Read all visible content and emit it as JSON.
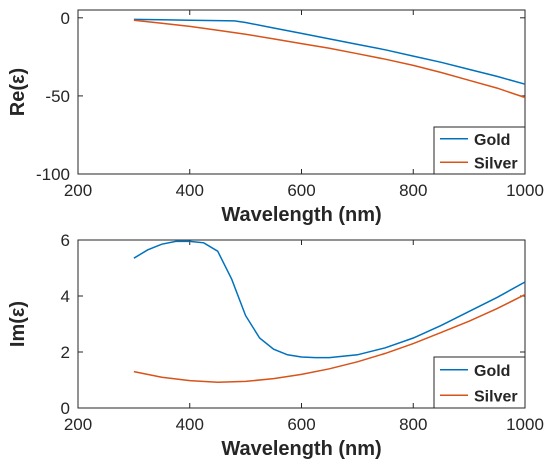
{
  "chart_data": [
    {
      "type": "line",
      "xlabel": "Wavelength (nm)",
      "ylabel": "Re(ε)",
      "xlim": [
        200,
        1000
      ],
      "ylim": [
        -100,
        5
      ],
      "xticks": [
        200,
        400,
        600,
        800,
        1000
      ],
      "yticks": [
        -100,
        -50,
        0
      ],
      "grid": false,
      "legend": "bottom-right",
      "series": [
        {
          "name": "Gold",
          "color": "#0072BD",
          "x": [
            300,
            350,
            400,
            450,
            480,
            500,
            550,
            600,
            650,
            700,
            750,
            800,
            850,
            900,
            950,
            1000
          ],
          "y": [
            -1.0,
            -1.2,
            -1.5,
            -1.8,
            -2.0,
            -3.0,
            -6.5,
            -10.0,
            -13.5,
            -17.0,
            -20.5,
            -24.5,
            -28.5,
            -33.0,
            -37.5,
            -42.5
          ]
        },
        {
          "name": "Silver",
          "color": "#D95319",
          "x": [
            300,
            350,
            400,
            450,
            500,
            550,
            600,
            650,
            700,
            750,
            800,
            850,
            900,
            950,
            1000
          ],
          "y": [
            -1.5,
            -3.5,
            -5.5,
            -8.0,
            -10.5,
            -13.5,
            -16.5,
            -19.5,
            -23.0,
            -26.5,
            -30.5,
            -35.0,
            -40.0,
            -45.0,
            -51.0
          ]
        }
      ]
    },
    {
      "type": "line",
      "xlabel": "Wavelength (nm)",
      "ylabel": "Im(ε)",
      "xlim": [
        200,
        1000
      ],
      "ylim": [
        0,
        6
      ],
      "xticks": [
        200,
        400,
        600,
        800,
        1000
      ],
      "yticks": [
        0,
        2,
        4,
        6
      ],
      "grid": false,
      "legend": "bottom-right",
      "series": [
        {
          "name": "Gold",
          "color": "#0072BD",
          "x": [
            300,
            325,
            350,
            375,
            400,
            425,
            450,
            475,
            500,
            525,
            550,
            575,
            600,
            625,
            650,
            700,
            750,
            800,
            850,
            900,
            950,
            1000
          ],
          "y": [
            5.35,
            5.65,
            5.85,
            5.95,
            5.95,
            5.9,
            5.6,
            4.6,
            3.3,
            2.5,
            2.1,
            1.9,
            1.82,
            1.8,
            1.8,
            1.9,
            2.15,
            2.5,
            2.95,
            3.45,
            3.95,
            4.5
          ]
        },
        {
          "name": "Silver",
          "color": "#D95319",
          "x": [
            300,
            350,
            400,
            450,
            500,
            550,
            600,
            650,
            700,
            750,
            800,
            850,
            900,
            950,
            1000
          ],
          "y": [
            1.3,
            1.1,
            0.98,
            0.92,
            0.95,
            1.05,
            1.2,
            1.4,
            1.65,
            1.95,
            2.3,
            2.7,
            3.1,
            3.55,
            4.05
          ]
        }
      ]
    }
  ]
}
